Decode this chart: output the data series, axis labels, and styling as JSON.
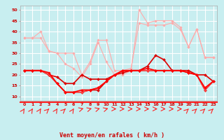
{
  "xlabel": "Vent moyen/en rafales ( km/h )",
  "bg_color": "#c8eef0",
  "grid_color": "#ffffff",
  "xlim": [
    -0.5,
    23.5
  ],
  "ylim": [
    8,
    52
  ],
  "yticks": [
    10,
    15,
    20,
    25,
    30,
    35,
    40,
    45,
    50
  ],
  "xticks": [
    0,
    1,
    2,
    3,
    4,
    5,
    6,
    7,
    8,
    9,
    10,
    11,
    12,
    13,
    14,
    15,
    16,
    17,
    18,
    19,
    20,
    21,
    22,
    23
  ],
  "series": [
    {
      "x": [
        0,
        1,
        2,
        3,
        4,
        5,
        6,
        7,
        8,
        9,
        10,
        11,
        12,
        13,
        14,
        15,
        16,
        17,
        18,
        19,
        20,
        21,
        22,
        23
      ],
      "y": [
        37,
        37,
        40,
        31,
        30,
        25,
        23,
        19,
        25,
        35,
        26,
        20,
        20,
        22,
        50,
        44,
        45,
        45,
        45,
        42,
        33,
        41,
        28,
        28
      ],
      "color": "#ffaaaa",
      "lw": 0.8,
      "marker": "D",
      "ms": 1.8
    },
    {
      "x": [
        0,
        1,
        2,
        3,
        4,
        5,
        6,
        7,
        8,
        9,
        10,
        11,
        12,
        13,
        14,
        15,
        16,
        17,
        18,
        19,
        20,
        21,
        22,
        23
      ],
      "y": [
        37,
        37,
        37,
        31,
        30,
        30,
        30,
        20,
        26,
        36,
        36,
        22,
        22,
        23,
        44,
        43,
        43,
        43,
        44,
        41,
        33,
        41,
        28,
        28
      ],
      "color": "#ffaaaa",
      "lw": 0.8,
      "marker": "D",
      "ms": 1.8
    },
    {
      "x": [
        0,
        1,
        2,
        3,
        4,
        5,
        6,
        7,
        8,
        9,
        10,
        11,
        12,
        13,
        14,
        15,
        16,
        17,
        18,
        19,
        20,
        21,
        22,
        23
      ],
      "y": [
        22,
        22,
        22,
        20,
        16,
        12,
        12,
        12,
        13,
        13,
        17,
        20,
        22,
        22,
        22,
        24,
        29,
        27,
        22,
        22,
        21,
        20,
        13,
        17
      ],
      "color": "#dd0000",
      "lw": 1.2,
      "marker": "D",
      "ms": 2.0
    },
    {
      "x": [
        0,
        1,
        2,
        3,
        4,
        5,
        6,
        7,
        8,
        9,
        10,
        11,
        12,
        13,
        14,
        15,
        16,
        17,
        18,
        19,
        20,
        21,
        22,
        23
      ],
      "y": [
        22,
        22,
        22,
        20,
        19,
        16,
        16,
        20,
        18,
        18,
        18,
        20,
        21,
        22,
        22,
        22,
        22,
        22,
        22,
        22,
        22,
        20,
        20,
        17
      ],
      "color": "#dd0000",
      "lw": 1.2,
      "marker": "D",
      "ms": 2.0
    },
    {
      "x": [
        0,
        1,
        2,
        3,
        4,
        5,
        6,
        7,
        8,
        9,
        10,
        11,
        12,
        13,
        14,
        15,
        16,
        17,
        18,
        19,
        20,
        21,
        22,
        23
      ],
      "y": [
        22,
        22,
        22,
        20,
        16,
        12,
        12,
        12,
        13,
        14,
        17,
        20,
        22,
        22,
        22,
        22,
        22,
        22,
        22,
        22,
        21,
        20,
        13,
        17
      ],
      "color": "#ff4444",
      "lw": 1.0,
      "marker": "D",
      "ms": 1.8
    },
    {
      "x": [
        0,
        1,
        2,
        3,
        4,
        5,
        6,
        7,
        8,
        9,
        10,
        11,
        12,
        13,
        14,
        15,
        16,
        17,
        18,
        19,
        20,
        21,
        22,
        23
      ],
      "y": [
        22,
        22,
        22,
        21,
        16,
        12,
        12,
        13,
        13,
        14,
        17,
        20,
        22,
        22,
        22,
        23,
        22,
        22,
        22,
        22,
        21,
        20,
        14,
        17
      ],
      "color": "#ff0000",
      "lw": 1.2,
      "marker": "D",
      "ms": 1.8
    }
  ],
  "font_color": "#cc0000",
  "arrow_color": "#ff2222",
  "arrow_angles": [
    -45,
    -45,
    -45,
    -30,
    -45,
    -30,
    -45,
    -10,
    -10,
    -10,
    -10,
    0,
    0,
    0,
    0,
    0,
    0,
    0,
    0,
    0,
    -30,
    -30,
    -30,
    -30
  ]
}
